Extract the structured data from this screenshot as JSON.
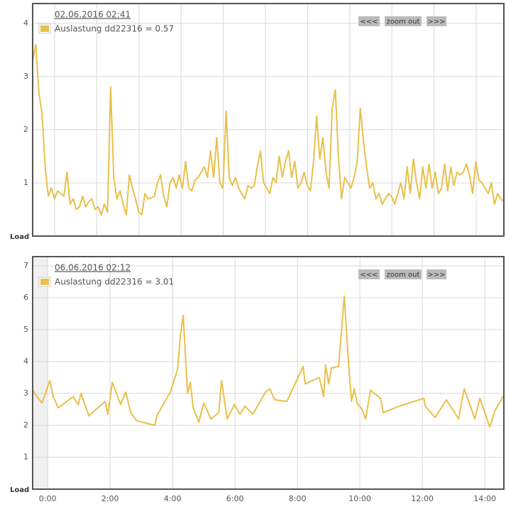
{
  "chart_data": [
    {
      "type": "line",
      "title": "02.06.2016 02:41",
      "ylabel": "Load",
      "buttons": [
        "<<<",
        "zoom out",
        ">>>"
      ],
      "ylim": [
        0,
        4.37
      ],
      "yticks": [
        1,
        2,
        3,
        4
      ],
      "grid": true,
      "series": [
        {
          "name": "Auslastung dd22316 = 0.57",
          "color": "#e8c04a",
          "values": [
            3.3,
            3.6,
            2.7,
            2.3,
            1.3,
            0.75,
            0.9,
            0.7,
            0.85,
            0.8,
            0.75,
            1.2,
            0.6,
            0.7,
            0.5,
            0.55,
            0.75,
            0.55,
            0.65,
            0.7,
            0.5,
            0.55,
            0.4,
            0.6,
            0.45,
            2.8,
            1.1,
            0.7,
            0.85,
            0.6,
            0.4,
            1.15,
            0.9,
            0.7,
            0.45,
            0.4,
            0.8,
            0.7,
            0.72,
            0.75,
            1.0,
            1.15,
            0.75,
            0.55,
            1.0,
            1.1,
            0.9,
            1.15,
            0.9,
            1.4,
            0.9,
            0.85,
            1.05,
            1.1,
            1.2,
            1.3,
            1.1,
            1.6,
            1.1,
            1.85,
            1.0,
            0.9,
            2.35,
            1.1,
            0.95,
            1.1,
            0.9,
            0.8,
            0.7,
            0.95,
            0.9,
            0.95,
            1.3,
            1.6,
            1.0,
            0.9,
            0.8,
            1.1,
            1.0,
            1.5,
            1.1,
            1.4,
            1.6,
            1.1,
            1.4,
            0.9,
            1.0,
            1.2,
            0.95,
            0.85,
            1.4,
            2.25,
            1.45,
            1.85,
            1.2,
            0.9,
            2.4,
            2.75,
            1.5,
            0.7,
            1.1,
            1.0,
            0.9,
            1.1,
            1.4,
            2.4,
            1.8,
            1.3,
            0.9,
            1.0,
            0.7,
            0.8,
            0.6,
            0.7,
            0.8,
            0.75,
            0.6,
            0.8,
            1.0,
            0.7,
            1.3,
            0.8,
            1.45,
            1.0,
            0.7,
            1.3,
            0.9,
            1.35,
            0.9,
            1.2,
            0.8,
            0.9,
            1.35,
            0.85,
            1.3,
            0.95,
            1.2,
            1.15,
            1.2,
            1.35,
            1.15,
            0.8,
            1.4,
            1.05,
            1.0,
            0.9,
            0.8,
            1.0,
            0.6,
            0.8,
            0.7,
            0.65
          ]
        }
      ]
    },
    {
      "type": "line",
      "title": "06.06.2016 02:12",
      "ylabel": "Load",
      "buttons": [
        "<<<",
        "zoom out",
        ">>>"
      ],
      "xlim": [
        -0.48,
        14.61
      ],
      "xticks": [
        {
          "value": 0,
          "label": "0:00"
        },
        {
          "value": 2,
          "label": "2:00"
        },
        {
          "value": 4,
          "label": "4:00"
        },
        {
          "value": 6,
          "label": "6:00"
        },
        {
          "value": 8,
          "label": "8:00"
        },
        {
          "value": 10,
          "label": "10:00"
        },
        {
          "value": 12,
          "label": "12:00"
        },
        {
          "value": 14,
          "label": "14:00"
        }
      ],
      "ylim": [
        0,
        7.29
      ],
      "yticks": [
        1,
        2,
        3,
        4,
        5,
        6,
        7
      ],
      "grid": true,
      "x": [
        -0.48,
        -0.34,
        -0.18,
        0.07,
        0.18,
        0.34,
        0.82,
        0.98,
        1.07,
        1.32,
        1.84,
        1.93,
        2.07,
        2.34,
        2.5,
        2.66,
        2.84,
        3.43,
        3.5,
        3.93,
        4.16,
        4.25,
        4.34,
        4.48,
        4.57,
        4.66,
        4.84,
        5.0,
        5.23,
        5.48,
        5.57,
        5.75,
        5.98,
        6.16,
        6.32,
        6.57,
        6.98,
        7.11,
        7.27,
        7.66,
        8.18,
        8.25,
        8.7,
        8.84,
        8.9,
        9.0,
        9.09,
        9.32,
        9.5,
        9.64,
        9.73,
        9.82,
        9.91,
        10.07,
        10.18,
        10.34,
        10.66,
        10.75,
        11.25,
        12.05,
        12.09,
        12.41,
        12.77,
        13.16,
        13.34,
        13.68,
        13.84,
        14.16,
        14.32,
        14.61
      ],
      "series": [
        {
          "name": "Auslastung dd22316 = 3.01",
          "color": "#e8c04a",
          "values": [
            3.1,
            2.9,
            2.7,
            3.4,
            2.9,
            2.55,
            2.9,
            2.65,
            3.0,
            2.3,
            2.75,
            2.35,
            3.35,
            2.65,
            3.05,
            2.4,
            2.15,
            2.0,
            2.3,
            3.05,
            3.75,
            4.8,
            5.45,
            3.0,
            3.35,
            2.55,
            2.1,
            2.7,
            2.2,
            2.4,
            3.4,
            2.2,
            2.65,
            2.35,
            2.6,
            2.35,
            3.05,
            3.15,
            2.8,
            2.75,
            3.85,
            3.3,
            3.5,
            2.9,
            3.9,
            3.3,
            3.8,
            3.85,
            6.05,
            3.9,
            2.75,
            3.15,
            2.7,
            2.5,
            2.2,
            3.1,
            2.85,
            2.4,
            2.6,
            2.85,
            2.6,
            2.25,
            2.8,
            2.2,
            3.15,
            2.2,
            2.85,
            1.95,
            2.45,
            2.95
          ]
        }
      ]
    }
  ]
}
